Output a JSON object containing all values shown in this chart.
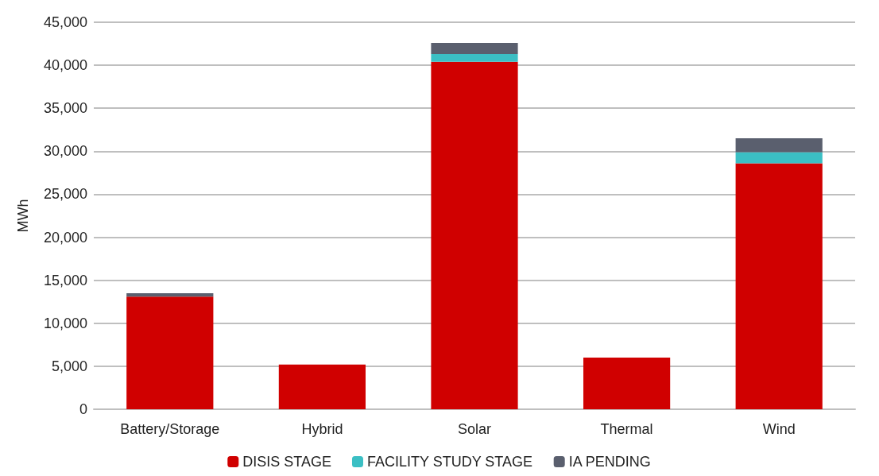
{
  "chart_data": {
    "type": "bar",
    "stacked": true,
    "ylabel": "MWh",
    "categories": [
      "Battery/Storage",
      "Hybrid",
      "Solar",
      "Thermal",
      "Wind"
    ],
    "series": [
      {
        "name": "DISIS STAGE",
        "color": "#d00000",
        "values": [
          13100,
          5200,
          40400,
          6000,
          28600
        ]
      },
      {
        "name": "FACILITY STUDY STAGE",
        "color": "#3bbfc4",
        "values": [
          null,
          null,
          900,
          null,
          1300
        ]
      },
      {
        "name": "IA PENDING",
        "color": "#5a5f6e",
        "values": [
          400,
          null,
          1300,
          null,
          1600
        ]
      }
    ],
    "ylim": [
      0,
      45000
    ],
    "yticks": [
      {
        "value": 0,
        "label": "0"
      },
      {
        "value": 5000,
        "label": "5,000"
      },
      {
        "value": 10000,
        "label": "10,000"
      },
      {
        "value": 15000,
        "label": "15,000"
      },
      {
        "value": 20000,
        "label": "20,000"
      },
      {
        "value": 25000,
        "label": "25,000"
      },
      {
        "value": 30000,
        "label": "30,000"
      },
      {
        "value": 35000,
        "label": "35,000"
      },
      {
        "value": 40000,
        "label": "40,000"
      },
      {
        "value": 45000,
        "label": "45,000"
      }
    ],
    "grid": "y",
    "legend": "bottom"
  }
}
